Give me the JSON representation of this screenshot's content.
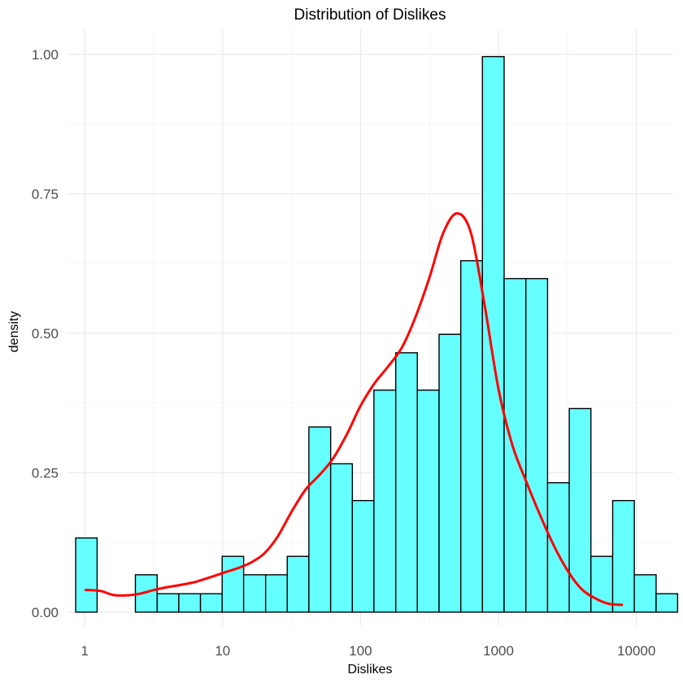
{
  "chart_data": {
    "type": "bar",
    "title": "Distribution of Dislikes",
    "xlabel": "Dislikes",
    "ylabel": "density",
    "x_scale": "log10",
    "x_ticks": [
      1,
      10,
      100,
      1000,
      10000
    ],
    "x_tick_labels": [
      "1",
      "10",
      "100",
      "1000",
      "10000"
    ],
    "y_ticks": [
      0,
      0.25,
      0.5,
      0.75,
      1.0
    ],
    "y_tick_labels": [
      "0.00",
      "0.25",
      "0.50",
      "0.75",
      "1.00"
    ],
    "ylim": [
      -0.025,
      1.045
    ],
    "xlim": [
      0.74,
      18500
    ],
    "grid": true,
    "bars": [
      {
        "x0": 0.86,
        "x1": 1.23,
        "density": 0.133
      },
      {
        "x0": 2.33,
        "x1": 3.35,
        "density": 0.067
      },
      {
        "x0": 3.35,
        "x1": 4.81,
        "density": 0.033
      },
      {
        "x0": 4.81,
        "x1": 6.91,
        "density": 0.033
      },
      {
        "x0": 6.91,
        "x1": 9.92,
        "density": 0.033
      },
      {
        "x0": 9.92,
        "x1": 14.2,
        "density": 0.1
      },
      {
        "x0": 14.2,
        "x1": 20.5,
        "density": 0.067
      },
      {
        "x0": 20.5,
        "x1": 29.4,
        "density": 0.067
      },
      {
        "x0": 29.4,
        "x1": 42.2,
        "density": 0.1
      },
      {
        "x0": 42.2,
        "x1": 60.7,
        "density": 0.332
      },
      {
        "x0": 60.7,
        "x1": 87.2,
        "density": 0.266
      },
      {
        "x0": 87.2,
        "x1": 125,
        "density": 0.2
      },
      {
        "x0": 125,
        "x1": 180,
        "density": 0.398
      },
      {
        "x0": 180,
        "x1": 258,
        "density": 0.465
      },
      {
        "x0": 258,
        "x1": 371,
        "density": 0.398
      },
      {
        "x0": 371,
        "x1": 533,
        "density": 0.498
      },
      {
        "x0": 533,
        "x1": 765,
        "density": 0.63
      },
      {
        "x0": 765,
        "x1": 1099,
        "density": 0.996
      },
      {
        "x0": 1099,
        "x1": 1580,
        "density": 0.598
      },
      {
        "x0": 1580,
        "x1": 2270,
        "density": 0.598
      },
      {
        "x0": 2270,
        "x1": 3260,
        "density": 0.232
      },
      {
        "x0": 3260,
        "x1": 4680,
        "density": 0.365
      },
      {
        "x0": 4680,
        "x1": 6730,
        "density": 0.1
      },
      {
        "x0": 6730,
        "x1": 9660,
        "density": 0.2
      },
      {
        "x0": 9660,
        "x1": 13900,
        "density": 0.067
      },
      {
        "x0": 13900,
        "x1": 19900,
        "density": 0.033
      }
    ],
    "density_curve": [
      [
        1,
        0.04
      ],
      [
        1.3,
        0.038
      ],
      [
        1.6,
        0.031
      ],
      [
        2,
        0.03
      ],
      [
        2.5,
        0.033
      ],
      [
        3.2,
        0.04
      ],
      [
        4,
        0.045
      ],
      [
        5,
        0.049
      ],
      [
        6.3,
        0.054
      ],
      [
        8,
        0.062
      ],
      [
        10,
        0.07
      ],
      [
        12.6,
        0.078
      ],
      [
        15.8,
        0.088
      ],
      [
        20,
        0.105
      ],
      [
        25,
        0.135
      ],
      [
        31.6,
        0.18
      ],
      [
        40,
        0.22
      ],
      [
        50,
        0.245
      ],
      [
        63,
        0.275
      ],
      [
        80,
        0.32
      ],
      [
        100,
        0.37
      ],
      [
        126,
        0.41
      ],
      [
        158,
        0.44
      ],
      [
        200,
        0.475
      ],
      [
        251,
        0.53
      ],
      [
        316,
        0.6
      ],
      [
        398,
        0.68
      ],
      [
        501,
        0.715
      ],
      [
        631,
        0.68
      ],
      [
        794,
        0.55
      ],
      [
        1000,
        0.4
      ],
      [
        1259,
        0.3
      ],
      [
        1585,
        0.235
      ],
      [
        1995,
        0.175
      ],
      [
        2512,
        0.12
      ],
      [
        3162,
        0.075
      ],
      [
        3981,
        0.042
      ],
      [
        5012,
        0.025
      ],
      [
        6310,
        0.015
      ],
      [
        8000,
        0.013
      ]
    ],
    "colors": {
      "bar_fill": "#66ffff",
      "bar_outline": "#000000",
      "density_line": "#ff0000"
    }
  }
}
